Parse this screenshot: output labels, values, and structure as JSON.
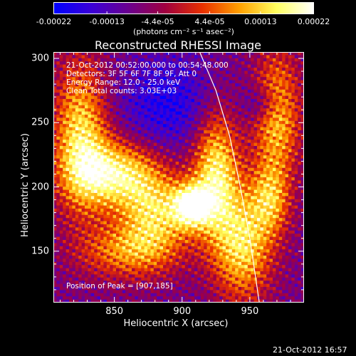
{
  "colorbar": {
    "tick_labels": [
      "-0.00022",
      "-0.00013",
      "-4.4e-05",
      "4.4e-05",
      "0.00013",
      "0.00022"
    ],
    "tick_values": [
      -0.00022,
      -0.00013,
      -4.4e-05,
      4.4e-05,
      0.00013,
      0.00022
    ],
    "range": [
      -0.00022,
      0.00022
    ],
    "units_label": "(photons cm⁻² s⁻¹ asec⁻²)",
    "colors": [
      "#0000ff",
      "#3a00d8",
      "#6a0090",
      "#a00040",
      "#e83000",
      "#ffa000",
      "#ffff60",
      "#ffffff"
    ]
  },
  "chart_data": {
    "type": "heatmap",
    "title": "Reconstructed RHESSI Image",
    "xlabel": "Heliocentric X (arcsec)",
    "ylabel": "Heliocentric Y (arcsec)",
    "xlim": [
      805,
      990
    ],
    "ylim": [
      110,
      305
    ],
    "x_ticks": [
      850,
      900,
      950
    ],
    "y_ticks": [
      150,
      200,
      250,
      300
    ],
    "limb_curve": [
      [
        913,
        305
      ],
      [
        925,
        275
      ],
      [
        935,
        240
      ],
      [
        943,
        200
      ],
      [
        950,
        160
      ],
      [
        957,
        110
      ]
    ],
    "annotations": [
      "21-Oct-2012 00:52:00.000 to 00:54:48.000",
      "Detectors: 3F 5F 6F 7F 8F 9F, Att 0",
      "Energy Range: 12.0 - 25.0 keV",
      "Clean     Total counts: 3.03E+03"
    ],
    "peak_label": "Position of Peak = [907,185]",
    "peak_position": [
      907,
      185
    ]
  },
  "footer": {
    "timestamp": "21-Oct-2012 16:57"
  }
}
